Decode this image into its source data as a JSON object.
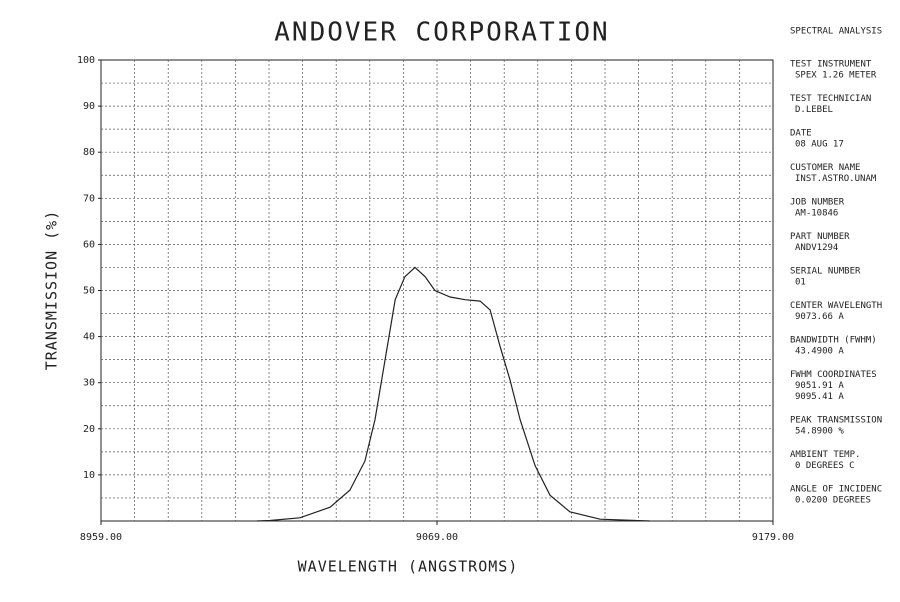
{
  "chart_data": {
    "type": "line",
    "title": "ANDOVER CORPORATION",
    "x_label": "WAVELENGTH (ANGSTROMS)",
    "y_label": "TRANSMISSION (%)",
    "color": "#222222",
    "x": [
      9010,
      9014.3,
      9024.1,
      9034,
      9040.5,
      9045.4,
      9048.7,
      9052,
      9055.3,
      9058.5,
      9061.8,
      9065.1,
      9068.3,
      9073.3,
      9078.2,
      9083.1,
      9086.4,
      9089.6,
      9092.9,
      9096.2,
      9101.1,
      9106,
      9112.5,
      9122.4,
      9138.7
    ],
    "values": [
      0,
      0.1,
      0.7,
      3,
      6.7,
      13,
      22,
      35,
      48,
      53,
      55,
      53,
      50,
      48.6,
      48,
      47.7,
      45.8,
      38,
      30.6,
      22,
      12,
      5.6,
      2,
      0.4,
      0
    ],
    "xlim": [
      8959,
      9179
    ],
    "xticks": [
      {
        "value": 8959,
        "label": "8959.00"
      },
      {
        "value": 9069,
        "label": "9069.00"
      },
      {
        "value": 9179,
        "label": "9179.00"
      }
    ],
    "xgrid": [
      8970,
      8981,
      8992,
      9003,
      9014,
      9025,
      9036,
      9047,
      9058,
      9069,
      9080,
      9091,
      9102,
      9113,
      9124,
      9135,
      9146,
      9157,
      9168
    ],
    "ylim": [
      0,
      100
    ],
    "yticks": [
      10,
      20,
      30,
      40,
      50,
      60,
      70,
      80,
      90,
      100
    ],
    "ygrid": [
      5,
      10,
      15,
      20,
      25,
      30,
      35,
      40,
      45,
      50,
      55,
      60,
      65,
      70,
      75,
      80,
      85,
      90,
      95
    ],
    "grid": true
  },
  "sidebar": {
    "title": "SPECTRAL ANALYSIS",
    "fields": [
      {
        "label": "TEST INSTRUMENT",
        "values": [
          "SPEX 1.26 METER"
        ]
      },
      {
        "label": "TEST TECHNICIAN",
        "values": [
          "D.LEBEL"
        ]
      },
      {
        "label": "DATE",
        "values": [
          "08 AUG 17"
        ]
      },
      {
        "label": "CUSTOMER NAME",
        "values": [
          "INST.ASTRO.UNAM"
        ]
      },
      {
        "label": "JOB NUMBER",
        "values": [
          "AM-10846"
        ]
      },
      {
        "label": "PART NUMBER",
        "values": [
          "ANDV1294"
        ]
      },
      {
        "label": "SERIAL NUMBER",
        "values": [
          "01"
        ]
      },
      {
        "label": "CENTER WAVELENGTH",
        "values": [
          "9073.66 A"
        ]
      },
      {
        "label": "BANDWIDTH (FWHM)",
        "values": [
          "43.4900 A"
        ]
      },
      {
        "label": "FWHM COORDINATES",
        "values": [
          "9051.91 A",
          "9095.41 A"
        ]
      },
      {
        "label": "PEAK TRANSMISSION",
        "values": [
          "54.8900 %"
        ]
      },
      {
        "label": "AMBIENT TEMP.",
        "values": [
          "0 DEGREES C"
        ]
      },
      {
        "label": "ANGLE OF INCIDENC",
        "values": [
          "0.0200 DEGREES"
        ]
      }
    ]
  }
}
